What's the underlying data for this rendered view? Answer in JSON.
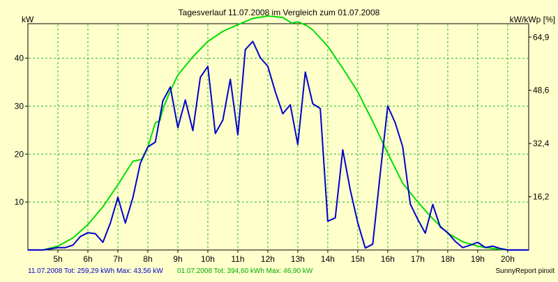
{
  "chart_data": {
    "type": "line",
    "title": "Tagesverlauf 11.07.2008 im Vergleich zum 01.07.2008",
    "ylabel_left": "kW",
    "ylabel_right": "kW/kWp [%]",
    "xlim": [
      4.0,
      20.7
    ],
    "ylim": [
      0,
      47.2
    ],
    "grid": true,
    "x_ticks": [
      {
        "v": 5,
        "label": "5h"
      },
      {
        "v": 6,
        "label": "6h"
      },
      {
        "v": 7,
        "label": "7h"
      },
      {
        "v": 8,
        "label": "8h"
      },
      {
        "v": 9,
        "label": "9h"
      },
      {
        "v": 10,
        "label": "10h"
      },
      {
        "v": 11,
        "label": "11h"
      },
      {
        "v": 12,
        "label": "12h"
      },
      {
        "v": 13,
        "label": "13h"
      },
      {
        "v": 14,
        "label": "14h"
      },
      {
        "v": 15,
        "label": "15h"
      },
      {
        "v": 16,
        "label": "16h"
      },
      {
        "v": 17,
        "label": "17h"
      },
      {
        "v": 18,
        "label": "18h"
      },
      {
        "v": 19,
        "label": "19h"
      },
      {
        "v": 20,
        "label": "20h"
      }
    ],
    "y_ticks_left": [
      {
        "v": 10,
        "label": "10"
      },
      {
        "v": 20,
        "label": "20"
      },
      {
        "v": 30,
        "label": "30"
      },
      {
        "v": 40,
        "label": "40"
      }
    ],
    "y_ticks_right": [
      {
        "v": 11.1,
        "label": "16,2"
      },
      {
        "v": 22.2,
        "label": "32,4"
      },
      {
        "v": 33.3,
        "label": "48,6"
      },
      {
        "v": 44.4,
        "label": "64,9"
      }
    ],
    "series": [
      {
        "name": "01.07.2008",
        "color": "#00dd00",
        "x": [
          4.0,
          4.5,
          5.0,
          5.5,
          6.0,
          6.5,
          7.0,
          7.5,
          7.8,
          8.0,
          8.25,
          8.4,
          8.5,
          8.7,
          9.0,
          9.5,
          10.0,
          10.5,
          11.0,
          11.5,
          12.0,
          12.5,
          12.8,
          13.0,
          13.3,
          13.5,
          14.0,
          14.5,
          15.0,
          15.5,
          16.0,
          16.5,
          17.0,
          17.5,
          18.0,
          18.5,
          19.0,
          19.5,
          20.0,
          20.7
        ],
        "y": [
          0,
          0,
          0.8,
          2.5,
          5.3,
          9.0,
          13.6,
          18.5,
          18.9,
          21.5,
          26.5,
          27.0,
          29.3,
          32.5,
          36.5,
          40.3,
          43.5,
          45.6,
          47.0,
          48.3,
          48.8,
          48.5,
          47.3,
          47.6,
          46.8,
          45.9,
          42.5,
          37.9,
          33.0,
          26.8,
          20.2,
          13.9,
          10.0,
          6.5,
          3.5,
          1.7,
          0.8,
          0.3,
          0,
          0
        ]
      },
      {
        "name": "11.07.2008",
        "color": "#0000cc",
        "x": [
          4.0,
          4.5,
          5.0,
          5.25,
          5.5,
          5.75,
          6.0,
          6.25,
          6.5,
          6.75,
          7.0,
          7.25,
          7.5,
          7.75,
          8.0,
          8.25,
          8.5,
          8.75,
          9.0,
          9.25,
          9.5,
          9.75,
          10.0,
          10.25,
          10.5,
          10.75,
          11.0,
          11.25,
          11.5,
          11.75,
          12.0,
          12.25,
          12.5,
          12.75,
          13.0,
          13.25,
          13.5,
          13.75,
          14.0,
          14.25,
          14.5,
          14.75,
          15.0,
          15.25,
          15.5,
          15.75,
          16.0,
          16.25,
          16.5,
          16.75,
          17.0,
          17.25,
          17.5,
          17.75,
          18.0,
          18.25,
          18.5,
          18.75,
          19.0,
          19.25,
          19.5,
          19.75,
          20.0,
          20.7
        ],
        "y": [
          0,
          0,
          0.5,
          0.5,
          1.0,
          2.8,
          3.6,
          3.4,
          1.6,
          5.6,
          11.0,
          5.6,
          10.9,
          18.1,
          21.5,
          22.5,
          31.1,
          34.0,
          25.5,
          31.3,
          24.9,
          36.0,
          38.3,
          24.3,
          27.1,
          35.6,
          24.0,
          41.8,
          43.5,
          40.1,
          38.3,
          33.0,
          28.4,
          30.3,
          22.0,
          37.1,
          30.5,
          29.5,
          6.0,
          6.7,
          20.9,
          12.5,
          5.7,
          0.4,
          1.2,
          16.0,
          30.0,
          26.5,
          21.5,
          9.6,
          6.4,
          3.5,
          9.5,
          4.8,
          3.6,
          1.8,
          0.5,
          1.0,
          1.6,
          0.5,
          0.8,
          0.3,
          0,
          0
        ]
      }
    ]
  },
  "footer": {
    "blue_info": "11.07.2008 Tot: 259,29 kWh Max: 43,56 kW",
    "green_info": "01.07.2008 Tot: 394,60 kWh Max: 46,90 kW",
    "credit": "SunnyReport pinxit"
  }
}
